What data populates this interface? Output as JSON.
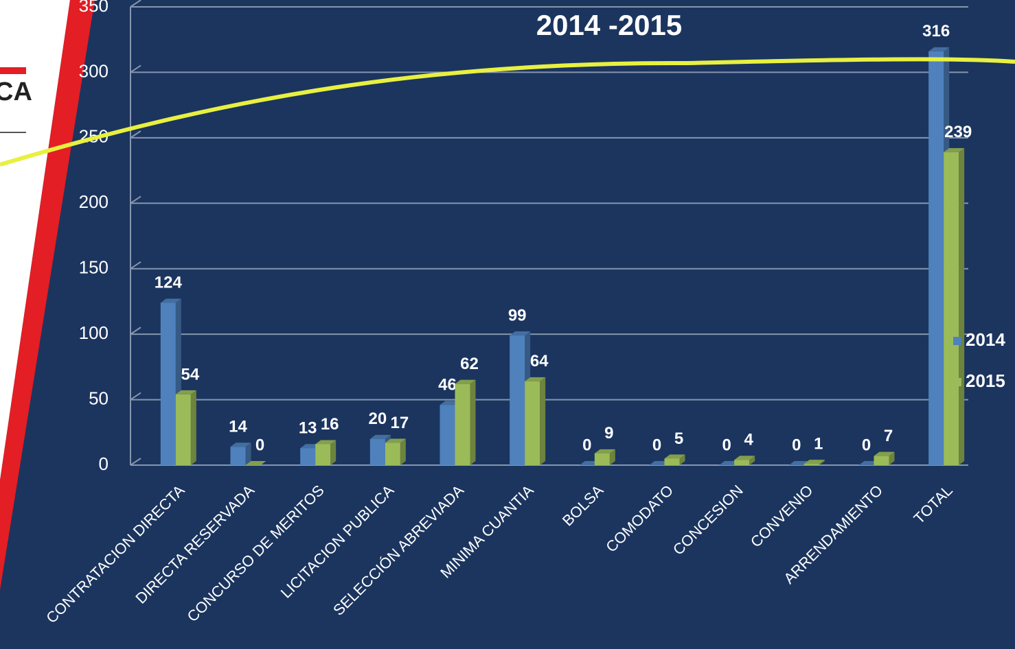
{
  "logo": "CA",
  "chart_data": {
    "type": "bar",
    "title": "2014 -2015",
    "categories": [
      "CONTRATACION DIRECTA",
      "DIRECTA RESERVADA",
      "CONCURSO DE MERITOS",
      "LICITACION PUBLICA",
      "SELECCIÓN ABREVIADA",
      "MINIMA CUANTIA",
      "BOLSA",
      "COMODATO",
      "CONCESION",
      "CONVENIO",
      "ARRENDAMIENTO",
      "TOTAL"
    ],
    "series": [
      {
        "name": "2014",
        "color": "#4f81bd",
        "values": [
          124,
          14,
          13,
          20,
          46,
          99,
          0,
          0,
          0,
          0,
          0,
          316
        ]
      },
      {
        "name": "2015",
        "color": "#9bbb59",
        "values": [
          54,
          0,
          16,
          17,
          62,
          64,
          9,
          5,
          4,
          1,
          7,
          239
        ]
      }
    ],
    "ylim": [
      0,
      350
    ],
    "yticks": [
      0,
      50,
      100,
      150,
      200,
      250,
      300,
      350
    ],
    "grid": true,
    "legend": "right"
  }
}
